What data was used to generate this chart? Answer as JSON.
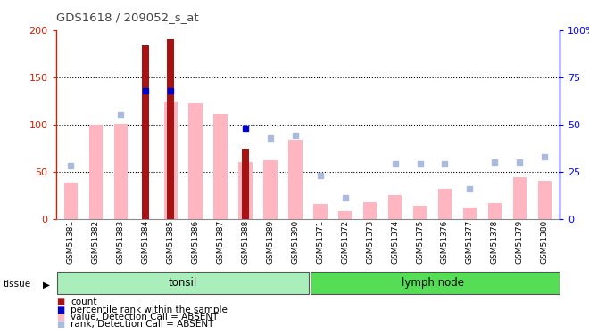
{
  "title": "GDS1618 / 209052_s_at",
  "samples": [
    "GSM51381",
    "GSM51382",
    "GSM51383",
    "GSM51384",
    "GSM51385",
    "GSM51386",
    "GSM51387",
    "GSM51388",
    "GSM51389",
    "GSM51390",
    "GSM51371",
    "GSM51372",
    "GSM51373",
    "GSM51374",
    "GSM51375",
    "GSM51376",
    "GSM51377",
    "GSM51378",
    "GSM51379",
    "GSM51380"
  ],
  "count_values": [
    0,
    0,
    0,
    184,
    190,
    0,
    0,
    74,
    0,
    0,
    0,
    0,
    0,
    0,
    0,
    0,
    0,
    0,
    0,
    0
  ],
  "rank_values": [
    0,
    0,
    0,
    68,
    68,
    0,
    0,
    48,
    0,
    0,
    0,
    0,
    0,
    0,
    0,
    0,
    0,
    0,
    0,
    0
  ],
  "absent_value": [
    38,
    100,
    101,
    0,
    124,
    122,
    111,
    60,
    62,
    84,
    16,
    8,
    18,
    25,
    14,
    32,
    12,
    17,
    44,
    40
  ],
  "absent_rank": [
    28,
    0,
    55,
    0,
    0,
    0,
    0,
    0,
    43,
    44,
    23,
    11,
    0,
    29,
    29,
    29,
    16,
    30,
    30,
    33
  ],
  "tonsil_count": 10,
  "lymph_count": 10,
  "tonsil_label": "tonsil",
  "lymph_label": "lymph node",
  "ylim_left": [
    0,
    200
  ],
  "ylim_right": [
    0,
    100
  ],
  "yticks_left": [
    0,
    50,
    100,
    150,
    200
  ],
  "yticks_right": [
    0,
    25,
    50,
    75,
    100
  ],
  "ytick_labels_right": [
    "0",
    "25",
    "50",
    "75",
    "100%"
  ],
  "count_color": "#AA1111",
  "rank_color": "#0000CC",
  "absent_value_color": "#FFB6C1",
  "absent_rank_color": "#AABBDD",
  "plot_bg_color": "#FFFFFF",
  "tissue_tonsil_color": "#AAEEBB",
  "tissue_lymph_color": "#55DD55",
  "xticklabel_bg": "#CCCCCC",
  "title_color": "#444444"
}
